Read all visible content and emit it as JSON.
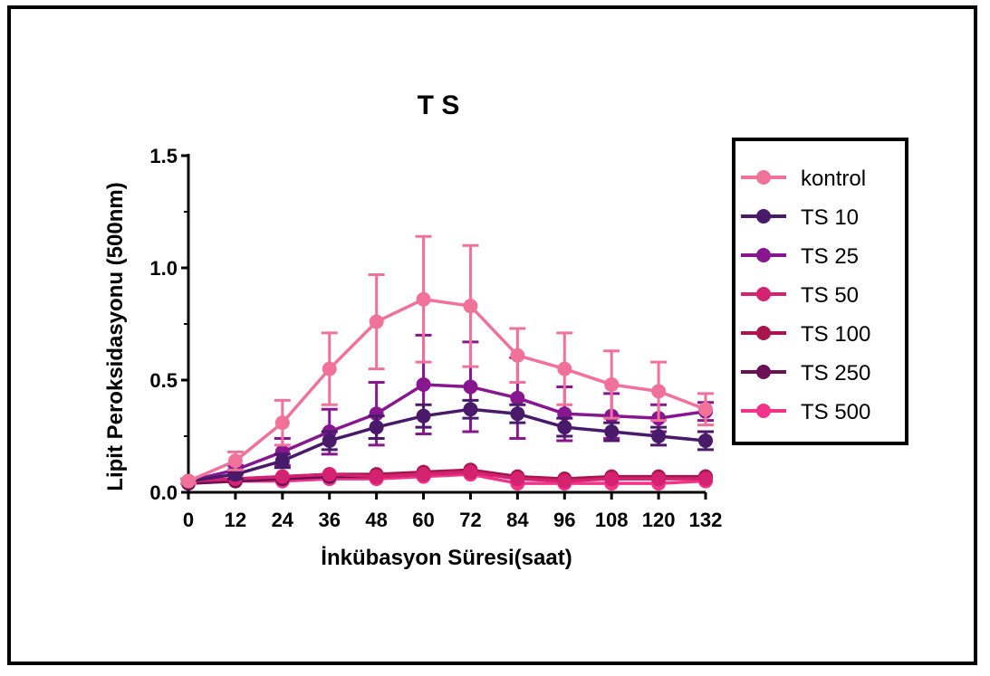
{
  "chart_data": {
    "type": "line",
    "title": "T S",
    "xlabel": "İnkübasyon Süresi(saat)",
    "ylabel": "Lipit Peroksidasyonu (500nm)",
    "x": [
      0,
      12,
      24,
      36,
      48,
      60,
      72,
      84,
      96,
      108,
      120,
      132
    ],
    "xticks": [
      "0",
      "12",
      "24",
      "36",
      "48",
      "60",
      "72",
      "84",
      "96",
      "108",
      "120",
      "132"
    ],
    "yticks": [
      "0.0",
      "0.5",
      "1.0",
      "1.5"
    ],
    "ylim": [
      0,
      1.5
    ],
    "xlim": [
      0,
      132
    ],
    "grid": false,
    "legend_position": "right",
    "series": [
      {
        "name": "kontrol",
        "color": "#f0729a",
        "values": [
          0.05,
          0.14,
          0.31,
          0.55,
          0.76,
          0.86,
          0.83,
          0.61,
          0.55,
          0.48,
          0.45,
          0.37
        ],
        "errors": [
          0.01,
          0.04,
          0.1,
          0.16,
          0.21,
          0.28,
          0.27,
          0.12,
          0.16,
          0.15,
          0.13,
          0.07
        ]
      },
      {
        "name": "TS 10",
        "color": "#4a1a6a",
        "values": [
          0.05,
          0.08,
          0.14,
          0.23,
          0.29,
          0.34,
          0.37,
          0.35,
          0.29,
          0.27,
          0.25,
          0.23
        ],
        "errors": [
          0.01,
          0.02,
          0.03,
          0.04,
          0.05,
          0.05,
          0.04,
          0.04,
          0.04,
          0.04,
          0.04,
          0.04
        ]
      },
      {
        "name": "TS 25",
        "color": "#87168f",
        "values": [
          0.05,
          0.1,
          0.18,
          0.27,
          0.35,
          0.48,
          0.47,
          0.42,
          0.35,
          0.34,
          0.33,
          0.36
        ],
        "errors": [
          0.01,
          0.02,
          0.06,
          0.1,
          0.14,
          0.22,
          0.2,
          0.18,
          0.12,
          0.1,
          0.06,
          0.04
        ]
      },
      {
        "name": "TS 50",
        "color": "#d42270",
        "values": [
          0.05,
          0.06,
          0.07,
          0.08,
          0.07,
          0.08,
          0.09,
          0.06,
          0.05,
          0.06,
          0.06,
          0.06
        ],
        "errors": [
          0.005,
          0.005,
          0.005,
          0.005,
          0.005,
          0.005,
          0.005,
          0.005,
          0.005,
          0.005,
          0.005,
          0.005
        ]
      },
      {
        "name": "TS 100",
        "color": "#a8164f",
        "values": [
          0.05,
          0.06,
          0.07,
          0.08,
          0.08,
          0.09,
          0.1,
          0.07,
          0.06,
          0.07,
          0.07,
          0.07
        ],
        "errors": [
          0.005,
          0.005,
          0.005,
          0.005,
          0.005,
          0.005,
          0.005,
          0.005,
          0.005,
          0.005,
          0.005,
          0.005
        ]
      },
      {
        "name": "TS 250",
        "color": "#6a1054",
        "values": [
          0.04,
          0.05,
          0.06,
          0.07,
          0.07,
          0.08,
          0.09,
          0.06,
          0.06,
          0.06,
          0.06,
          0.07
        ],
        "errors": [
          0.005,
          0.005,
          0.005,
          0.005,
          0.005,
          0.005,
          0.005,
          0.005,
          0.005,
          0.005,
          0.005,
          0.005
        ]
      },
      {
        "name": "TS 500",
        "color": "#f2338a",
        "values": [
          0.04,
          0.05,
          0.05,
          0.06,
          0.06,
          0.07,
          0.08,
          0.04,
          0.04,
          0.04,
          0.04,
          0.05
        ],
        "errors": [
          0.005,
          0.005,
          0.005,
          0.005,
          0.005,
          0.005,
          0.005,
          0.005,
          0.005,
          0.005,
          0.005,
          0.005
        ]
      }
    ]
  }
}
